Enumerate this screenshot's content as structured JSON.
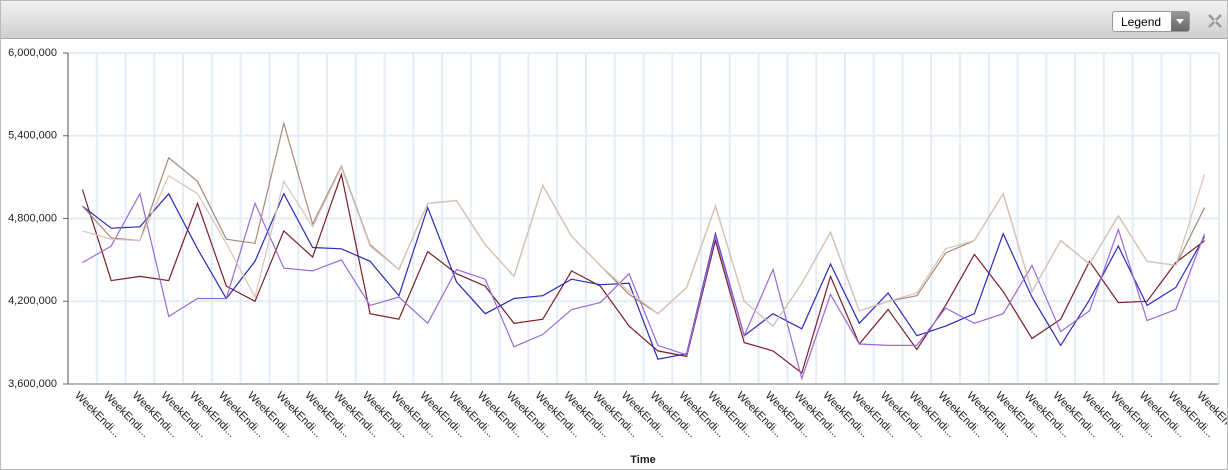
{
  "legend_button": "Legend",
  "chart_data": {
    "type": "line",
    "x_label": "Time",
    "categories": [
      "WeekEndi...",
      "WeekEndi...",
      "WeekEndi...",
      "WeekEndi...",
      "WeekEndi...",
      "WeekEndi...",
      "WeekEndi...",
      "WeekEndi...",
      "WeekEndi...",
      "WeekEndi...",
      "WeekEndi...",
      "WeekEndi...",
      "WeekEndi...",
      "WeekEndi...",
      "WeekEndi...",
      "WeekEndi...",
      "WeekEndi...",
      "WeekEndi...",
      "WeekEndi...",
      "WeekEndi...",
      "WeekEndi...",
      "WeekEndi...",
      "WeekEndi...",
      "WeekEndi...",
      "WeekEndi...",
      "WeekEndi...",
      "WeekEndi...",
      "WeekEndi...",
      "WeekEndi...",
      "WeekEndi...",
      "WeekEndi...",
      "WeekEndi...",
      "WeekEndi...",
      "WeekEndi...",
      "WeekEndi...",
      "WeekEndi...",
      "WeekEndi...",
      "WeekEndi...",
      "WeekEndi...",
      "WeekEndi..."
    ],
    "ylim": [
      3600000,
      6000000
    ],
    "yticks": [
      {
        "value": 3600000,
        "label": "3,600,000"
      },
      {
        "value": 4200000,
        "label": "4,200,000"
      },
      {
        "value": 4800000,
        "label": "4,800,000"
      },
      {
        "value": 5400000,
        "label": "5,400,000"
      },
      {
        "value": 6000000,
        "label": "6,000,000"
      }
    ],
    "grid": true,
    "series": [
      {
        "color": "#7b1f2a",
        "values": [
          5010000,
          4350000,
          4380000,
          4350000,
          4910000,
          4310000,
          4200000,
          4710000,
          4520000,
          5120000,
          4110000,
          4070000,
          4560000,
          4400000,
          4310000,
          4040000,
          4070000,
          4420000,
          4310000,
          4020000,
          3840000,
          3800000,
          4640000,
          3900000,
          3840000,
          3680000,
          4380000,
          3890000,
          4140000,
          3850000,
          4170000,
          4540000,
          4270000,
          3930000,
          4070000,
          4490000,
          4190000,
          4200000,
          4480000,
          4640000
        ]
      },
      {
        "color": "#2a2ab8",
        "values": [
          4890000,
          4730000,
          4740000,
          4980000,
          4580000,
          4220000,
          4490000,
          4980000,
          4590000,
          4580000,
          4490000,
          4240000,
          4880000,
          4340000,
          4110000,
          4220000,
          4240000,
          4360000,
          4320000,
          4330000,
          3780000,
          3820000,
          4690000,
          3950000,
          4110000,
          4000000,
          4470000,
          4040000,
          4260000,
          3950000,
          4020000,
          4110000,
          4690000,
          4230000,
          3880000,
          4210000,
          4600000,
          4170000,
          4300000,
          4670000
        ]
      },
      {
        "color": "#9a6ad8",
        "values": [
          4480000,
          4600000,
          4980000,
          4090000,
          4220000,
          4220000,
          4910000,
          4440000,
          4420000,
          4500000,
          4170000,
          4230000,
          4040000,
          4430000,
          4360000,
          3870000,
          3960000,
          4140000,
          4190000,
          4400000,
          3880000,
          3810000,
          4670000,
          3950000,
          4430000,
          3640000,
          4250000,
          3890000,
          3880000,
          3880000,
          4150000,
          4040000,
          4110000,
          4460000,
          3980000,
          4130000,
          4720000,
          4060000,
          4140000,
          4690000
        ]
      },
      {
        "color": "#a88a78",
        "values": [
          4890000,
          4660000,
          4640000,
          5240000,
          5070000,
          4650000,
          4620000,
          5490000,
          4760000,
          5180000,
          4610000,
          4430000,
          4910000,
          4930000,
          4610000,
          4380000,
          5040000,
          4670000,
          4460000,
          4250000,
          4110000,
          4300000,
          4890000,
          4200000,
          4020000,
          4330000,
          4700000,
          4130000,
          4200000,
          4240000,
          4550000,
          4640000,
          4980000,
          4270000,
          4640000,
          4470000,
          4820000,
          4490000,
          4460000,
          4880000
        ]
      },
      {
        "color": "#d8c4b8",
        "values": [
          4710000,
          4650000,
          4640000,
          5110000,
          4980000,
          4620000,
          4230000,
          5070000,
          4740000,
          5170000,
          4600000,
          4430000,
          4910000,
          4930000,
          4610000,
          4380000,
          5040000,
          4670000,
          4460000,
          4270000,
          4110000,
          4300000,
          4890000,
          4200000,
          4020000,
          4330000,
          4700000,
          4130000,
          4200000,
          4260000,
          4580000,
          4640000,
          4980000,
          4270000,
          4640000,
          4470000,
          4820000,
          4490000,
          4460000,
          5120000
        ]
      }
    ]
  }
}
